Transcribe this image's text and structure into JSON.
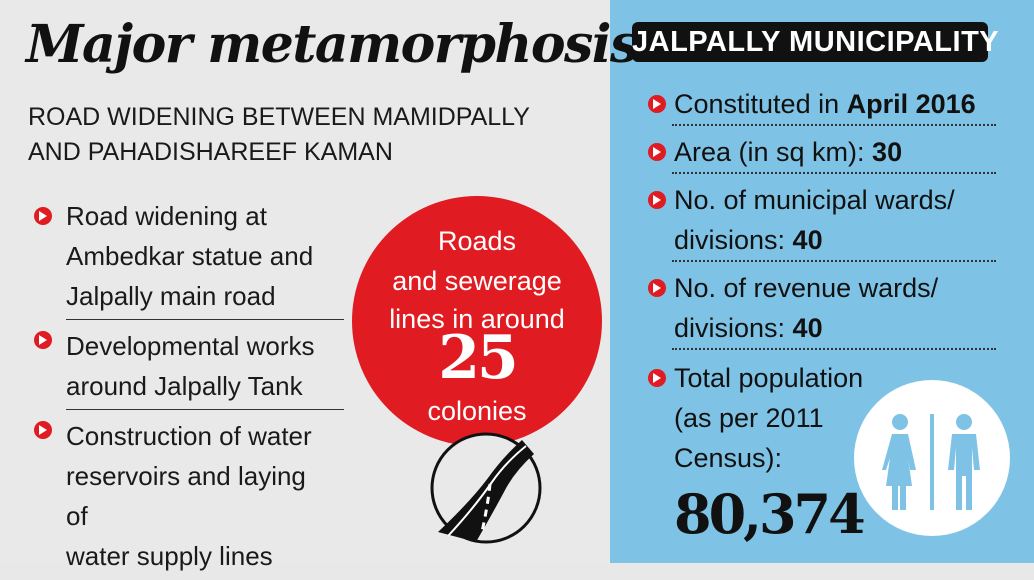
{
  "left": {
    "title": "Major metamorphosis",
    "subtitle_line1": "ROAD WIDENING BETWEEN MAMIDPALLY",
    "subtitle_line2": "AND PAHADISHAREEF KAMAN",
    "bullets": [
      [
        "Road widening at",
        "Ambedkar statue and",
        "Jalpally main road"
      ],
      [
        "Developmental works",
        "around Jalpally Tank"
      ],
      [
        "Construction of water",
        "reservoirs and laying of",
        "water supply lines"
      ]
    ],
    "circle": {
      "line1": "Roads",
      "line2": "and sewerage",
      "line3": "lines in around",
      "number": "25",
      "line4": "colonies"
    }
  },
  "right": {
    "title": "JALPALLY MUNICIPALITY",
    "items": [
      {
        "label": "Constituted in ",
        "value": "April 2016"
      },
      {
        "label": "Area (in sq km): ",
        "value": "30"
      },
      {
        "label_line1": "No. of municipal wards/",
        "label_line2": "divisions: ",
        "value": "40"
      },
      {
        "label_line1": "No. of revenue wards/",
        "label_line2": "divisions: ",
        "value": "40"
      },
      {
        "label_line1": "Total population",
        "label_line2": "(as per 2011",
        "label_line3": "Census):",
        "value": "80,374"
      }
    ]
  },
  "colors": {
    "red": "#e01b22",
    "blue": "#7ec3e5",
    "grey": "#e9e9e9"
  },
  "icons": [
    "red-arrow-bullet-icon",
    "road-icon",
    "male-female-icon"
  ]
}
